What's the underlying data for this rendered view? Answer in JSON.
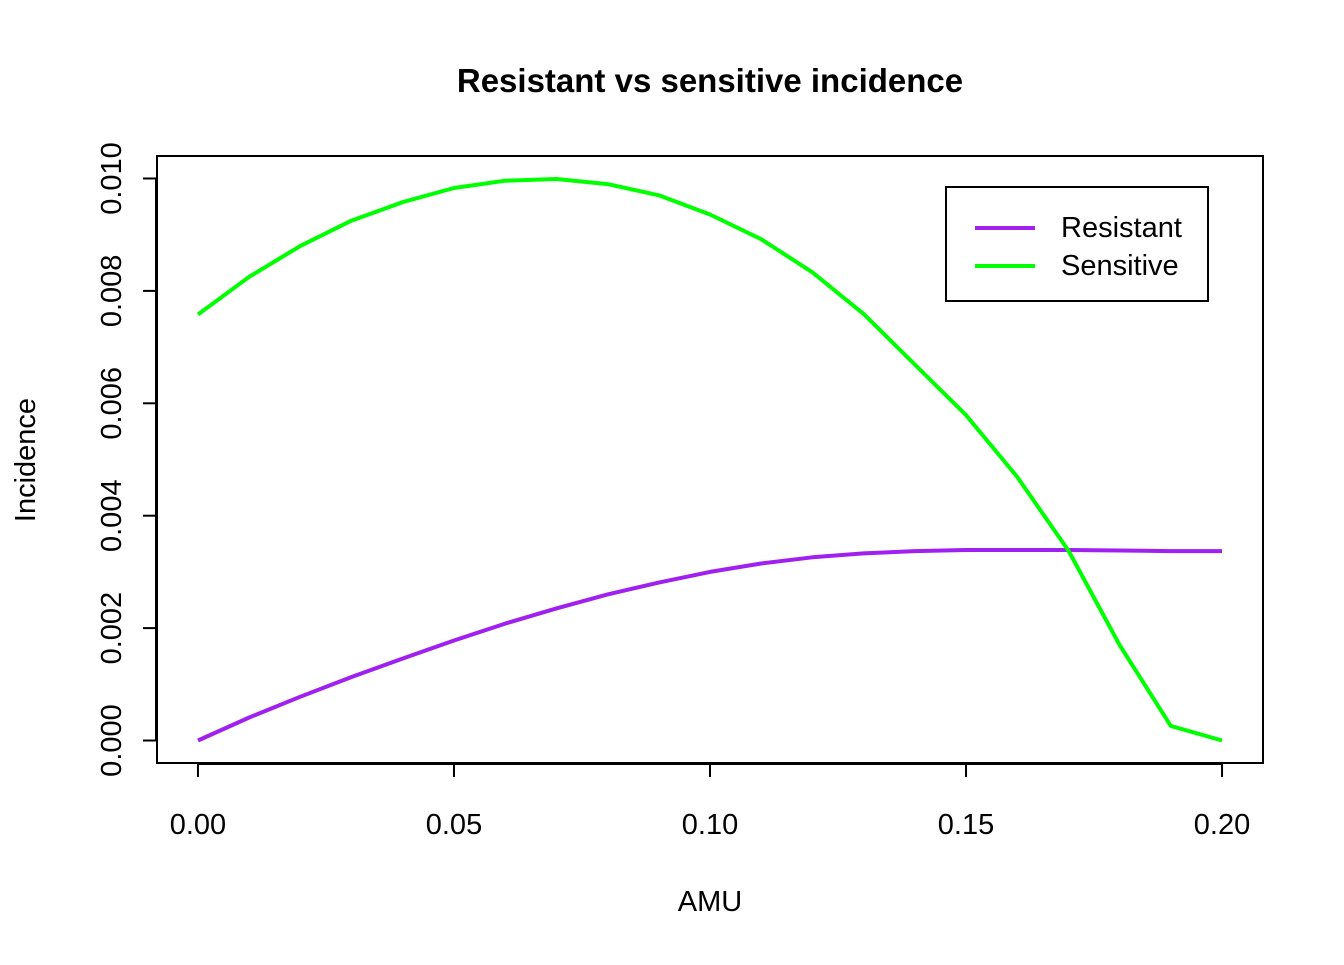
{
  "chart_data": {
    "type": "line",
    "title": "Resistant vs sensitive incidence",
    "xlabel": "AMU",
    "ylabel": "Incidence",
    "xlim": [
      -0.008,
      0.208
    ],
    "ylim": [
      -0.0004,
      0.0104
    ],
    "xticks": [
      0.0,
      0.05,
      0.1,
      0.15,
      0.2
    ],
    "xtick_labels": [
      "0.00",
      "0.05",
      "0.10",
      "0.15",
      "0.20"
    ],
    "yticks": [
      0.0,
      0.002,
      0.004,
      0.006,
      0.008,
      0.01
    ],
    "ytick_labels": [
      "0.000",
      "0.002",
      "0.004",
      "0.006",
      "0.008",
      "0.010"
    ],
    "grid": false,
    "legend_position": "top-right",
    "x": [
      0.0,
      0.01,
      0.02,
      0.03,
      0.04,
      0.05,
      0.06,
      0.07,
      0.08,
      0.09,
      0.1,
      0.11,
      0.12,
      0.13,
      0.14,
      0.15,
      0.16,
      0.17,
      0.18,
      0.19,
      0.2
    ],
    "series": [
      {
        "name": "Resistant",
        "color": "#a020f0",
        "values": [
          0.0,
          0.00041,
          0.00078,
          0.00113,
          0.00146,
          0.00178,
          0.00208,
          0.00235,
          0.0026,
          0.00281,
          0.003,
          0.00315,
          0.00326,
          0.00333,
          0.00337,
          0.00339,
          0.00339,
          0.00339,
          0.00338,
          0.00337,
          0.00337
        ]
      },
      {
        "name": "Sensitive",
        "color": "#00ff00",
        "values": [
          0.00758,
          0.00825,
          0.0088,
          0.00925,
          0.00958,
          0.00983,
          0.00996,
          0.00999,
          0.0099,
          0.0097,
          0.00936,
          0.00892,
          0.00833,
          0.00759,
          0.00669,
          0.00579,
          0.00469,
          0.00338,
          0.0017,
          0.00026,
          0.0
        ]
      }
    ]
  }
}
